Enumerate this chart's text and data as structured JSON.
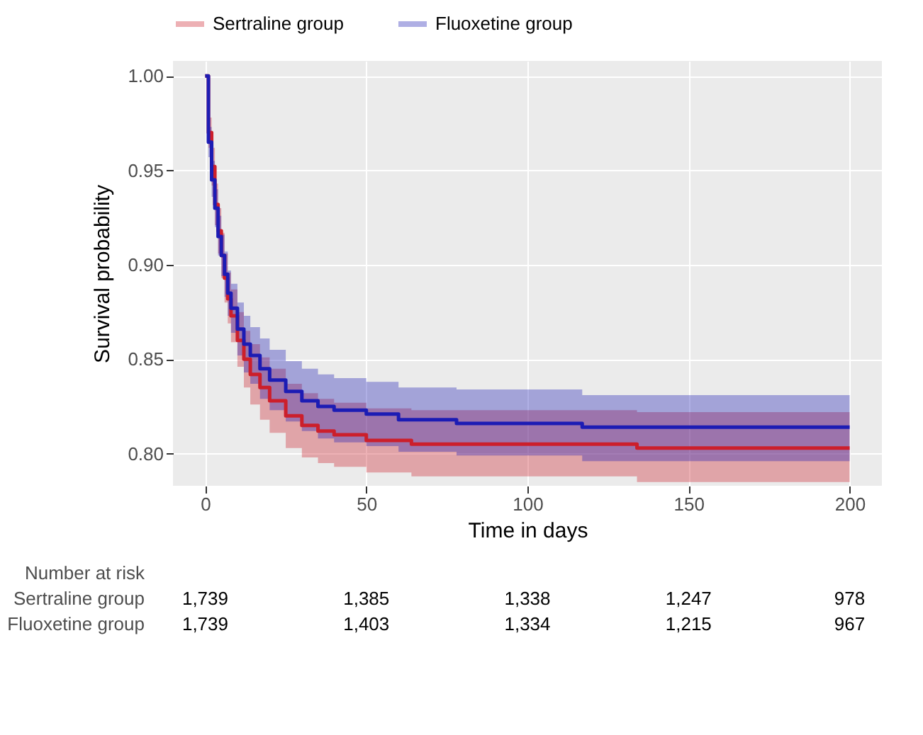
{
  "chart_data": {
    "type": "step",
    "xlabel": "Time in days",
    "ylabel": "Survival probability",
    "xlim": [
      -10,
      210
    ],
    "ylim": [
      0.783,
      1.008
    ],
    "xticks": [
      0,
      50,
      100,
      150,
      200
    ],
    "yticks": [
      {
        "value": 0.8,
        "label": "0.80"
      },
      {
        "value": 0.85,
        "label": "0.85"
      },
      {
        "value": 0.9,
        "label": "0.90"
      },
      {
        "value": 0.95,
        "label": "0.95"
      },
      {
        "value": 1.0,
        "label": "1.00"
      }
    ],
    "grid": true,
    "legend": "top",
    "series": [
      {
        "name": "Sertraline group",
        "color": "#cc1f2b",
        "x": [
          0,
          1,
          2,
          3,
          4,
          5,
          6,
          7,
          8,
          10,
          12,
          14,
          17,
          20,
          25,
          30,
          35,
          40,
          50,
          64,
          134,
          200
        ],
        "values": [
          1.0,
          0.97,
          0.952,
          0.932,
          0.918,
          0.905,
          0.893,
          0.882,
          0.873,
          0.86,
          0.85,
          0.842,
          0.835,
          0.828,
          0.82,
          0.815,
          0.812,
          0.81,
          0.807,
          0.805,
          0.803,
          0.803
        ],
        "lower": [
          1.0,
          0.962,
          0.942,
          0.921,
          0.906,
          0.893,
          0.88,
          0.869,
          0.859,
          0.846,
          0.835,
          0.826,
          0.818,
          0.811,
          0.803,
          0.798,
          0.795,
          0.793,
          0.79,
          0.788,
          0.785,
          0.785
        ],
        "upper": [
          1.0,
          0.978,
          0.962,
          0.943,
          0.93,
          0.917,
          0.906,
          0.896,
          0.887,
          0.875,
          0.865,
          0.858,
          0.851,
          0.845,
          0.837,
          0.832,
          0.829,
          0.827,
          0.824,
          0.823,
          0.822,
          0.822
        ]
      },
      {
        "name": "Fluoxetine group",
        "color": "#1c1cb4",
        "x": [
          0,
          1,
          2,
          3,
          4,
          5,
          6,
          7,
          8,
          10,
          12,
          14,
          17,
          20,
          25,
          30,
          35,
          40,
          50,
          60,
          78,
          117,
          200
        ],
        "values": [
          1.0,
          0.965,
          0.945,
          0.93,
          0.915,
          0.905,
          0.895,
          0.885,
          0.877,
          0.866,
          0.858,
          0.852,
          0.845,
          0.839,
          0.833,
          0.828,
          0.825,
          0.823,
          0.821,
          0.818,
          0.816,
          0.814,
          0.814
        ],
        "lower": [
          1.0,
          0.957,
          0.936,
          0.92,
          0.905,
          0.894,
          0.883,
          0.873,
          0.864,
          0.852,
          0.843,
          0.837,
          0.829,
          0.823,
          0.817,
          0.812,
          0.808,
          0.806,
          0.804,
          0.801,
          0.799,
          0.796,
          0.796
        ],
        "upper": [
          1.0,
          0.973,
          0.955,
          0.94,
          0.926,
          0.916,
          0.907,
          0.897,
          0.89,
          0.88,
          0.873,
          0.867,
          0.861,
          0.855,
          0.849,
          0.845,
          0.842,
          0.84,
          0.838,
          0.835,
          0.834,
          0.831,
          0.831
        ]
      }
    ],
    "annotations": [
      "Number at risk",
      "Sertraline group",
      "1,739",
      "1,385",
      "1,338",
      "1,247",
      "978",
      "Fluoxetine group",
      "1,739",
      "1,403",
      "1,334",
      "1,215",
      "967"
    ]
  }
}
